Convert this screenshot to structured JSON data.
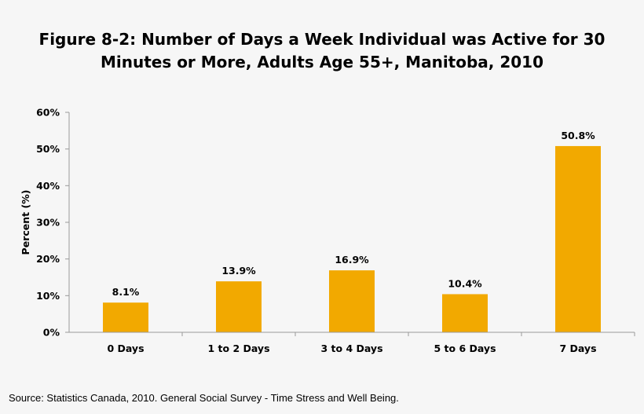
{
  "chart_data": {
    "type": "bar",
    "title_line1": "Figure 8-2: Number of Days a Week Individual was Active for 30",
    "title_line2": "Minutes or More, Adults Age 55+, Manitoba, 2010",
    "xlabel": "",
    "ylabel": "Percent (%)",
    "categories": [
      "0 Days",
      "1 to 2 Days",
      "3 to 4 Days",
      "5 to 6 Days",
      "7 Days"
    ],
    "values": [
      8.1,
      13.9,
      16.9,
      10.4,
      50.8
    ],
    "data_labels": [
      "8.1%",
      "13.9%",
      "16.9%",
      "10.4%",
      "50.8%"
    ],
    "ylim": [
      0,
      60
    ],
    "y_ticks": [
      0,
      10,
      20,
      30,
      40,
      50,
      60
    ],
    "y_tick_labels": [
      "0%",
      "10%",
      "20%",
      "30%",
      "40%",
      "50%",
      "60%"
    ],
    "grid": false,
    "legend": "none",
    "bar_color": "#f2a900",
    "axis_color": "#9a9a9a"
  },
  "source": "Source: Statistics Canada, 2010. General Social Survey - Time Stress and Well Being."
}
